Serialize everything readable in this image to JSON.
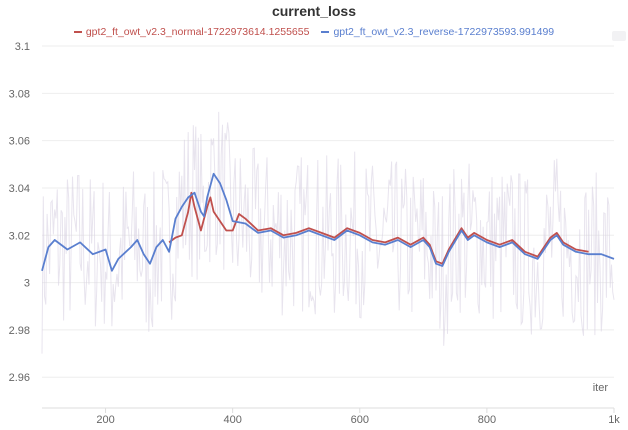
{
  "chart_data": {
    "type": "line",
    "title": "current_loss",
    "xlabel": "iter",
    "ylabel": "",
    "xlim": [
      100,
      1000
    ],
    "ylim": [
      2.947,
      3.1
    ],
    "x_ticks": [
      "200",
      "400",
      "600",
      "800",
      "1k"
    ],
    "x_tick_values": [
      200,
      400,
      600,
      800,
      1000
    ],
    "y_ticks": [
      "2.96",
      "2.98",
      "3",
      "3.02",
      "3.04",
      "3.06",
      "3.08",
      "3.1"
    ],
    "y_tick_values": [
      2.96,
      2.98,
      3.0,
      3.02,
      3.04,
      3.06,
      3.08,
      3.1
    ],
    "grid": "horizontal",
    "legend_placement": "top",
    "series": [
      {
        "name": "gpt2_ft_owt_v2.3_normal-1722973614.1255655",
        "color": "#c0504d",
        "x": [
          300,
          310,
          320,
          330,
          335,
          340,
          350,
          360,
          365,
          370,
          380,
          390,
          400,
          410,
          420,
          440,
          460,
          480,
          500,
          520,
          540,
          560,
          580,
          600,
          620,
          640,
          660,
          680,
          700,
          710,
          720,
          730,
          740,
          760,
          770,
          780,
          800,
          820,
          840,
          860,
          880,
          900,
          910,
          920,
          940,
          960
        ],
        "y": [
          3.017,
          3.019,
          3.02,
          3.03,
          3.038,
          3.032,
          3.022,
          3.032,
          3.036,
          3.03,
          3.026,
          3.022,
          3.022,
          3.029,
          3.027,
          3.022,
          3.023,
          3.02,
          3.021,
          3.023,
          3.021,
          3.019,
          3.023,
          3.021,
          3.018,
          3.017,
          3.019,
          3.016,
          3.019,
          3.016,
          3.009,
          3.008,
          3.014,
          3.023,
          3.019,
          3.021,
          3.018,
          3.016,
          3.018,
          3.013,
          3.011,
          3.019,
          3.021,
          3.017,
          3.014,
          3.013
        ]
      },
      {
        "name": "gpt2_ft_owt_v2.3_reverse-1722973593.991499",
        "color": "#5a7fcf",
        "x": [
          100,
          110,
          120,
          140,
          160,
          180,
          200,
          210,
          220,
          240,
          250,
          260,
          270,
          280,
          290,
          300,
          310,
          320,
          330,
          340,
          350,
          355,
          360,
          370,
          380,
          390,
          400,
          420,
          440,
          460,
          480,
          500,
          520,
          540,
          560,
          580,
          600,
          620,
          640,
          660,
          680,
          700,
          710,
          720,
          730,
          740,
          760,
          770,
          780,
          800,
          820,
          840,
          860,
          880,
          900,
          910,
          920,
          940,
          960,
          980,
          1000
        ],
        "y": [
          3.005,
          3.015,
          3.018,
          3.014,
          3.017,
          3.012,
          3.014,
          3.005,
          3.01,
          3.015,
          3.018,
          3.012,
          3.008,
          3.015,
          3.018,
          3.013,
          3.027,
          3.032,
          3.036,
          3.038,
          3.03,
          3.028,
          3.036,
          3.046,
          3.042,
          3.035,
          3.026,
          3.025,
          3.021,
          3.022,
          3.019,
          3.02,
          3.022,
          3.02,
          3.018,
          3.022,
          3.02,
          3.017,
          3.016,
          3.018,
          3.015,
          3.018,
          3.015,
          3.008,
          3.007,
          3.013,
          3.022,
          3.018,
          3.02,
          3.017,
          3.015,
          3.017,
          3.012,
          3.01,
          3.018,
          3.02,
          3.016,
          3.013,
          3.012,
          3.012,
          3.01
        ]
      }
    ]
  }
}
